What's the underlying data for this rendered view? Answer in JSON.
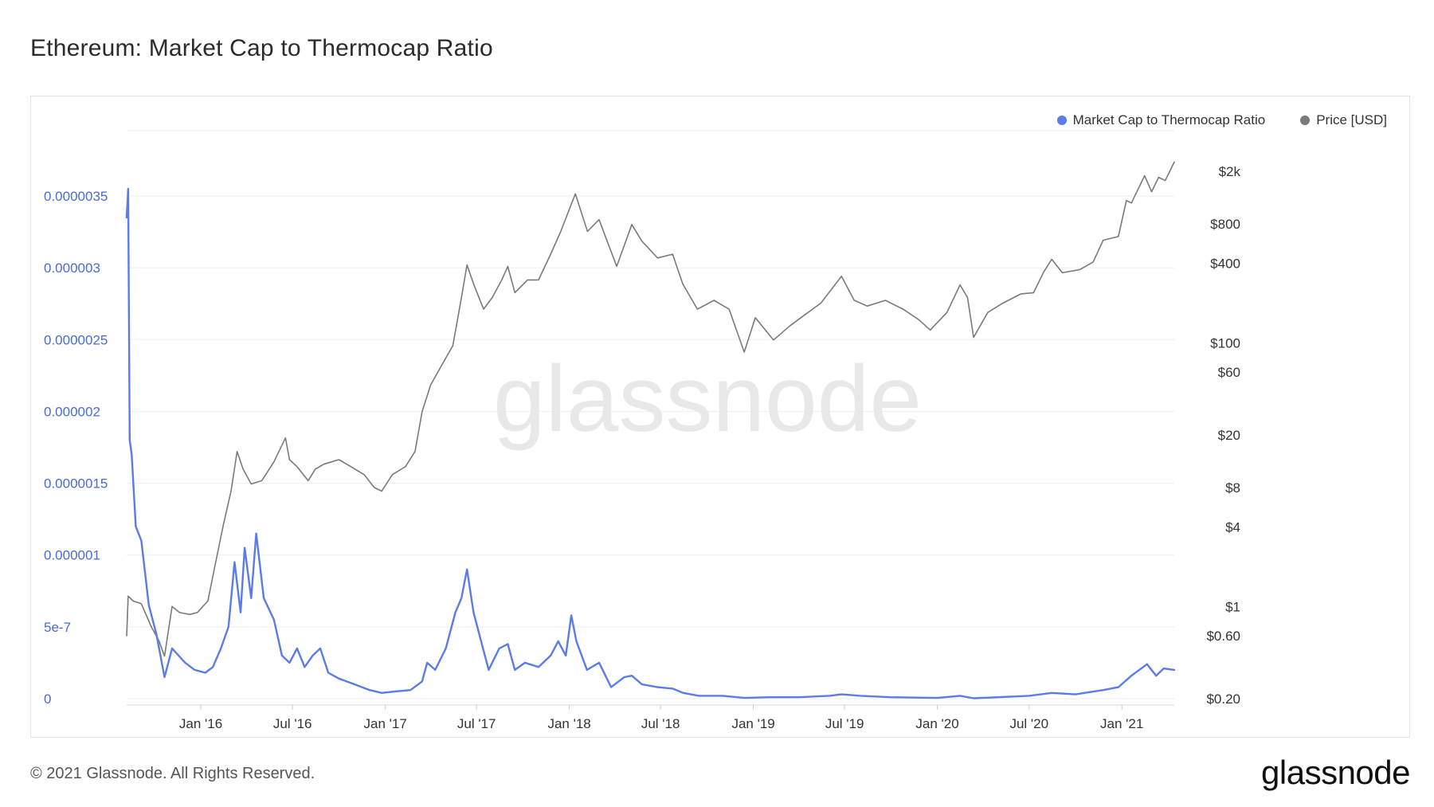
{
  "page": {
    "title": "Ethereum: Market Cap to Thermocap Ratio",
    "footer": "© 2021 Glassnode. All Rights Reserved.",
    "brand": "glassnode",
    "watermark": "glassnode"
  },
  "colors": {
    "ratio": "#5b7be6",
    "price": "#7a7a7a",
    "grid": "#eeeeee",
    "left_axis_text": "#4a6bd6",
    "watermark": "#e8e8e8"
  },
  "chart_data": {
    "type": "line",
    "title": "Ethereum: Market Cap to Thermocap Ratio",
    "legend_position": "top-right",
    "grid": true,
    "x_axis": {
      "type": "date",
      "range": [
        "2015-08-07",
        "2021-04-15"
      ],
      "tick_labels": [
        "Jan '16",
        "Jul '16",
        "Jan '17",
        "Jul '17",
        "Jan '18",
        "Jul '18",
        "Jan '19",
        "Jul '19",
        "Jan '20",
        "Jul '20",
        "Jan '21"
      ],
      "tick_dates": [
        "2016-01-01",
        "2016-07-01",
        "2017-01-01",
        "2017-07-01",
        "2018-01-01",
        "2018-07-01",
        "2019-01-01",
        "2019-07-01",
        "2020-01-01",
        "2020-07-01",
        "2021-01-01"
      ]
    },
    "y_left": {
      "scale": "linear",
      "range": [
        0,
        4e-06
      ],
      "tick_values": [
        0,
        5e-07,
        1e-06,
        1.5e-06,
        2e-06,
        2.5e-06,
        3e-06,
        3.5e-06
      ],
      "tick_labels": [
        "0",
        "5e-7",
        "0.000001",
        "0.0000015",
        "0.000002",
        "0.0000025",
        "0.000003",
        "0.0000035"
      ]
    },
    "y_right": {
      "scale": "log",
      "range": [
        0.2,
        2000
      ],
      "tick_values": [
        0.2,
        0.6,
        1,
        4,
        8,
        20,
        60,
        100,
        400,
        800,
        2000
      ],
      "tick_labels": [
        "$0.20",
        "$0.60",
        "$1",
        "$4",
        "$8",
        "$20",
        "$60",
        "$100",
        "$400",
        "$800",
        "$2k"
      ]
    },
    "series": [
      {
        "name": "Market Cap to Thermocap Ratio",
        "axis": "left",
        "color": "#5b7be6",
        "points": [
          [
            "2015-08-07",
            3.35e-06
          ],
          [
            "2015-08-10",
            3.55e-06
          ],
          [
            "2015-08-13",
            1.8e-06
          ],
          [
            "2015-08-17",
            1.7e-06
          ],
          [
            "2015-08-25",
            1.2e-06
          ],
          [
            "2015-09-05",
            1.1e-06
          ],
          [
            "2015-09-20",
            6.5e-07
          ],
          [
            "2015-10-05",
            4.5e-07
          ],
          [
            "2015-10-21",
            1.5e-07
          ],
          [
            "2015-11-05",
            3.5e-07
          ],
          [
            "2015-12-01",
            2.5e-07
          ],
          [
            "2015-12-20",
            2e-07
          ],
          [
            "2016-01-10",
            1.8e-07
          ],
          [
            "2016-01-25",
            2.2e-07
          ],
          [
            "2016-02-10",
            3.5e-07
          ],
          [
            "2016-02-25",
            5e-07
          ],
          [
            "2016-03-08",
            9.5e-07
          ],
          [
            "2016-03-20",
            6e-07
          ],
          [
            "2016-03-28",
            1.05e-06
          ],
          [
            "2016-04-10",
            7e-07
          ],
          [
            "2016-04-20",
            1.15e-06
          ],
          [
            "2016-05-05",
            7e-07
          ],
          [
            "2016-05-25",
            5.5e-07
          ],
          [
            "2016-06-10",
            3e-07
          ],
          [
            "2016-06-25",
            2.5e-07
          ],
          [
            "2016-07-10",
            3.5e-07
          ],
          [
            "2016-07-25",
            2.2e-07
          ],
          [
            "2016-08-10",
            3e-07
          ],
          [
            "2016-08-25",
            3.5e-07
          ],
          [
            "2016-09-10",
            1.8e-07
          ],
          [
            "2016-10-01",
            1.4e-07
          ],
          [
            "2016-11-01",
            1e-07
          ],
          [
            "2016-12-01",
            6e-08
          ],
          [
            "2016-12-25",
            4e-08
          ],
          [
            "2017-01-20",
            5e-08
          ],
          [
            "2017-02-20",
            6e-08
          ],
          [
            "2017-03-15",
            1.2e-07
          ],
          [
            "2017-03-25",
            2.5e-07
          ],
          [
            "2017-04-10",
            2e-07
          ],
          [
            "2017-05-01",
            3.5e-07
          ],
          [
            "2017-05-20",
            6e-07
          ],
          [
            "2017-06-01",
            7e-07
          ],
          [
            "2017-06-12",
            9e-07
          ],
          [
            "2017-06-25",
            6e-07
          ],
          [
            "2017-07-10",
            4e-07
          ],
          [
            "2017-07-25",
            2e-07
          ],
          [
            "2017-08-15",
            3.5e-07
          ],
          [
            "2017-09-01",
            3.8e-07
          ],
          [
            "2017-09-15",
            2e-07
          ],
          [
            "2017-10-05",
            2.5e-07
          ],
          [
            "2017-11-01",
            2.2e-07
          ],
          [
            "2017-11-25",
            3e-07
          ],
          [
            "2017-12-10",
            4e-07
          ],
          [
            "2017-12-25",
            3e-07
          ],
          [
            "2018-01-05",
            5.8e-07
          ],
          [
            "2018-01-15",
            4e-07
          ],
          [
            "2018-02-05",
            2e-07
          ],
          [
            "2018-03-01",
            2.5e-07
          ],
          [
            "2018-03-25",
            8e-08
          ],
          [
            "2018-04-20",
            1.5e-07
          ],
          [
            "2018-05-05",
            1.6e-07
          ],
          [
            "2018-05-25",
            1e-07
          ],
          [
            "2018-06-25",
            8e-08
          ],
          [
            "2018-07-25",
            7e-08
          ],
          [
            "2018-08-15",
            4e-08
          ],
          [
            "2018-09-15",
            2e-08
          ],
          [
            "2018-11-01",
            2e-08
          ],
          [
            "2018-12-15",
            5e-09
          ],
          [
            "2019-02-01",
            1e-08
          ],
          [
            "2019-04-01",
            1e-08
          ],
          [
            "2019-06-01",
            2e-08
          ],
          [
            "2019-06-25",
            3e-08
          ],
          [
            "2019-08-01",
            2e-08
          ],
          [
            "2019-10-01",
            1e-08
          ],
          [
            "2020-01-01",
            5e-09
          ],
          [
            "2020-02-15",
            2e-08
          ],
          [
            "2020-03-13",
            3e-09
          ],
          [
            "2020-05-01",
            1e-08
          ],
          [
            "2020-07-01",
            2e-08
          ],
          [
            "2020-08-15",
            4e-08
          ],
          [
            "2020-10-01",
            3e-08
          ],
          [
            "2020-11-25",
            6e-08
          ],
          [
            "2020-12-25",
            8e-08
          ],
          [
            "2021-01-20",
            1.6e-07
          ],
          [
            "2021-02-20",
            2.4e-07
          ],
          [
            "2021-03-10",
            1.6e-07
          ],
          [
            "2021-03-25",
            2.1e-07
          ],
          [
            "2021-04-15",
            2e-07
          ]
        ]
      },
      {
        "name": "Price [USD]",
        "axis": "right",
        "color": "#7a7a7a",
        "points": [
          [
            "2015-08-07",
            0.6
          ],
          [
            "2015-08-10",
            1.2
          ],
          [
            "2015-08-20",
            1.1
          ],
          [
            "2015-09-05",
            1.05
          ],
          [
            "2015-09-25",
            0.7
          ],
          [
            "2015-10-10",
            0.55
          ],
          [
            "2015-10-21",
            0.42
          ],
          [
            "2015-11-05",
            1.0
          ],
          [
            "2015-11-20",
            0.9
          ],
          [
            "2015-12-10",
            0.87
          ],
          [
            "2015-12-25",
            0.9
          ],
          [
            "2016-01-15",
            1.1
          ],
          [
            "2016-02-01",
            2.3
          ],
          [
            "2016-02-15",
            4.2
          ],
          [
            "2016-03-01",
            7.5
          ],
          [
            "2016-03-13",
            15.0
          ],
          [
            "2016-03-25",
            11.0
          ],
          [
            "2016-04-10",
            8.5
          ],
          [
            "2016-05-01",
            9.0
          ],
          [
            "2016-05-25",
            12.5
          ],
          [
            "2016-06-17",
            19.0
          ],
          [
            "2016-06-25",
            13.0
          ],
          [
            "2016-07-10",
            11.5
          ],
          [
            "2016-08-01",
            9.0
          ],
          [
            "2016-08-15",
            11.0
          ],
          [
            "2016-09-01",
            12.0
          ],
          [
            "2016-10-01",
            13.0
          ],
          [
            "2016-10-25",
            11.5
          ],
          [
            "2016-11-20",
            10.0
          ],
          [
            "2016-12-10",
            8.0
          ],
          [
            "2016-12-25",
            7.5
          ],
          [
            "2017-01-15",
            10.0
          ],
          [
            "2017-02-10",
            11.5
          ],
          [
            "2017-03-01",
            15.0
          ],
          [
            "2017-03-15",
            30.0
          ],
          [
            "2017-04-01",
            48.0
          ],
          [
            "2017-04-25",
            70.0
          ],
          [
            "2017-05-15",
            95.0
          ],
          [
            "2017-06-01",
            220.0
          ],
          [
            "2017-06-12",
            390.0
          ],
          [
            "2017-06-25",
            280.0
          ],
          [
            "2017-07-15",
            180.0
          ],
          [
            "2017-08-01",
            220.0
          ],
          [
            "2017-08-20",
            300.0
          ],
          [
            "2017-09-01",
            380.0
          ],
          [
            "2017-09-15",
            240.0
          ],
          [
            "2017-10-10",
            300.0
          ],
          [
            "2017-11-01",
            300.0
          ],
          [
            "2017-11-25",
            470.0
          ],
          [
            "2017-12-15",
            700.0
          ],
          [
            "2018-01-13",
            1350.0
          ],
          [
            "2018-02-06",
            700.0
          ],
          [
            "2018-03-01",
            860.0
          ],
          [
            "2018-04-05",
            380.0
          ],
          [
            "2018-05-05",
            790.0
          ],
          [
            "2018-05-25",
            590.0
          ],
          [
            "2018-06-25",
            440.0
          ],
          [
            "2018-07-25",
            470.0
          ],
          [
            "2018-08-14",
            280.0
          ],
          [
            "2018-09-12",
            180.0
          ],
          [
            "2018-10-15",
            210.0
          ],
          [
            "2018-11-14",
            180.0
          ],
          [
            "2018-12-14",
            85.0
          ],
          [
            "2019-01-05",
            155.0
          ],
          [
            "2019-02-10",
            105.0
          ],
          [
            "2019-03-15",
            135.0
          ],
          [
            "2019-04-15",
            165.0
          ],
          [
            "2019-05-15",
            200.0
          ],
          [
            "2019-06-25",
            320.0
          ],
          [
            "2019-07-20",
            210.0
          ],
          [
            "2019-08-15",
            190.0
          ],
          [
            "2019-09-20",
            210.0
          ],
          [
            "2019-10-25",
            180.0
          ],
          [
            "2019-11-25",
            150.0
          ],
          [
            "2019-12-18",
            125.0
          ],
          [
            "2020-01-20",
            170.0
          ],
          [
            "2020-02-15",
            275.0
          ],
          [
            "2020-03-01",
            220.0
          ],
          [
            "2020-03-13",
            110.0
          ],
          [
            "2020-04-10",
            170.0
          ],
          [
            "2020-05-10",
            200.0
          ],
          [
            "2020-06-15",
            235.0
          ],
          [
            "2020-07-10",
            240.0
          ],
          [
            "2020-07-30",
            345.0
          ],
          [
            "2020-08-15",
            430.0
          ],
          [
            "2020-09-05",
            340.0
          ],
          [
            "2020-10-10",
            360.0
          ],
          [
            "2020-11-05",
            410.0
          ],
          [
            "2020-11-25",
            600.0
          ],
          [
            "2020-12-25",
            640.0
          ],
          [
            "2021-01-10",
            1200.0
          ],
          [
            "2021-01-20",
            1150.0
          ],
          [
            "2021-02-15",
            1850.0
          ],
          [
            "2021-03-01",
            1400.0
          ],
          [
            "2021-03-15",
            1800.0
          ],
          [
            "2021-03-28",
            1700.0
          ],
          [
            "2021-04-15",
            2350.0
          ]
        ]
      }
    ]
  }
}
